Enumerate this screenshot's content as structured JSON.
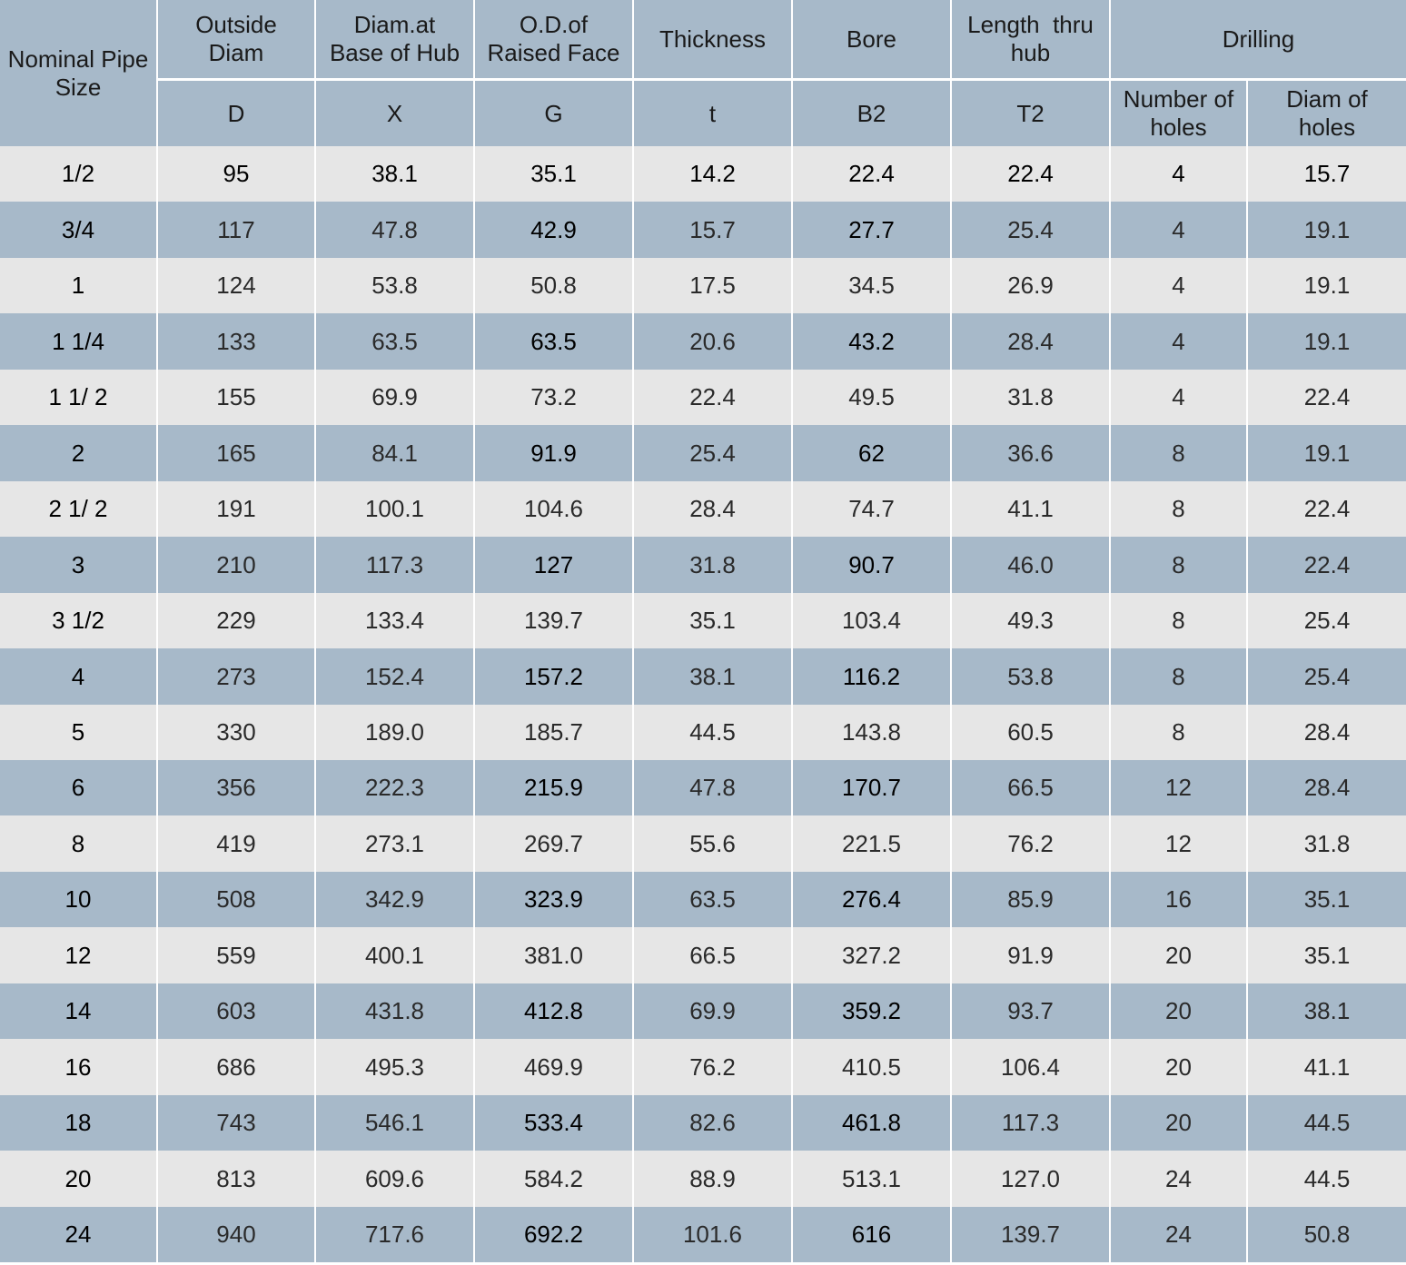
{
  "header": {
    "nominal": "Nominal Pipe\nSize",
    "columns": [
      "Outside\nDiam",
      "Diam.at\nBase of Hub",
      "O.D.of\nRaised Face",
      "Thickness",
      "Bore",
      "Length  thru\nhub"
    ],
    "drilling": "Drilling",
    "symbols": [
      "D",
      "X",
      "G",
      "t",
      "B2",
      "T2"
    ],
    "drilling_columns": [
      "Number of\nholes",
      "Diam of\nholes"
    ]
  },
  "table": {
    "rows": [
      [
        "1/2",
        "95",
        "38.1",
        "35.1",
        "14.2",
        "22.4",
        "22.4",
        "4",
        "15.7"
      ],
      [
        "3/4",
        "117",
        "47.8",
        "42.9",
        "15.7",
        "27.7",
        "25.4",
        "4",
        "19.1"
      ],
      [
        "1",
        "124",
        "53.8",
        "50.8",
        "17.5",
        "34.5",
        "26.9",
        "4",
        "19.1"
      ],
      [
        "1 1/4",
        "133",
        "63.5",
        "63.5",
        "20.6",
        "43.2",
        "28.4",
        "4",
        "19.1"
      ],
      [
        "1 1/ 2",
        "155",
        "69.9",
        "73.2",
        "22.4",
        "49.5",
        "31.8",
        "4",
        "22.4"
      ],
      [
        "2",
        "165",
        "84.1",
        "91.9",
        "25.4",
        "62",
        "36.6",
        "8",
        "19.1"
      ],
      [
        "2 1/ 2",
        "191",
        "100.1",
        "104.6",
        "28.4",
        "74.7",
        "41.1",
        "8",
        "22.4"
      ],
      [
        "3",
        "210",
        "117.3",
        "127",
        "31.8",
        "90.7",
        "46.0",
        "8",
        "22.4"
      ],
      [
        "3 1/2",
        "229",
        "133.4",
        "139.7",
        "35.1",
        "103.4",
        "49.3",
        "8",
        "25.4"
      ],
      [
        "4",
        "273",
        "152.4",
        "157.2",
        "38.1",
        "116.2",
        "53.8",
        "8",
        "25.4"
      ],
      [
        "5",
        "330",
        "189.0",
        "185.7",
        "44.5",
        "143.8",
        "60.5",
        "8",
        "28.4"
      ],
      [
        "6",
        "356",
        "222.3",
        "215.9",
        "47.8",
        "170.7",
        "66.5",
        "12",
        "28.4"
      ],
      [
        "8",
        "419",
        "273.1",
        "269.7",
        "55.6",
        "221.5",
        "76.2",
        "12",
        "31.8"
      ],
      [
        "10",
        "508",
        "342.9",
        "323.9",
        "63.5",
        "276.4",
        "85.9",
        "16",
        "35.1"
      ],
      [
        "12",
        "559",
        "400.1",
        "381.0",
        "66.5",
        "327.2",
        "91.9",
        "20",
        "35.1"
      ],
      [
        "14",
        "603",
        "431.8",
        "412.8",
        "69.9",
        "359.2",
        "93.7",
        "20",
        "38.1"
      ],
      [
        "16",
        "686",
        "495.3",
        "469.9",
        "76.2",
        "410.5",
        "106.4",
        "20",
        "41.1"
      ],
      [
        "18",
        "743",
        "546.1",
        "533.4",
        "82.6",
        "461.8",
        "117.3",
        "20",
        "44.5"
      ],
      [
        "20",
        "813",
        "609.6",
        "584.2",
        "88.9",
        "513.1",
        "127.0",
        "24",
        "44.5"
      ],
      [
        "24",
        "940",
        "717.6",
        "692.2",
        "101.6",
        "616",
        "139.7",
        "24",
        "50.8"
      ]
    ]
  }
}
